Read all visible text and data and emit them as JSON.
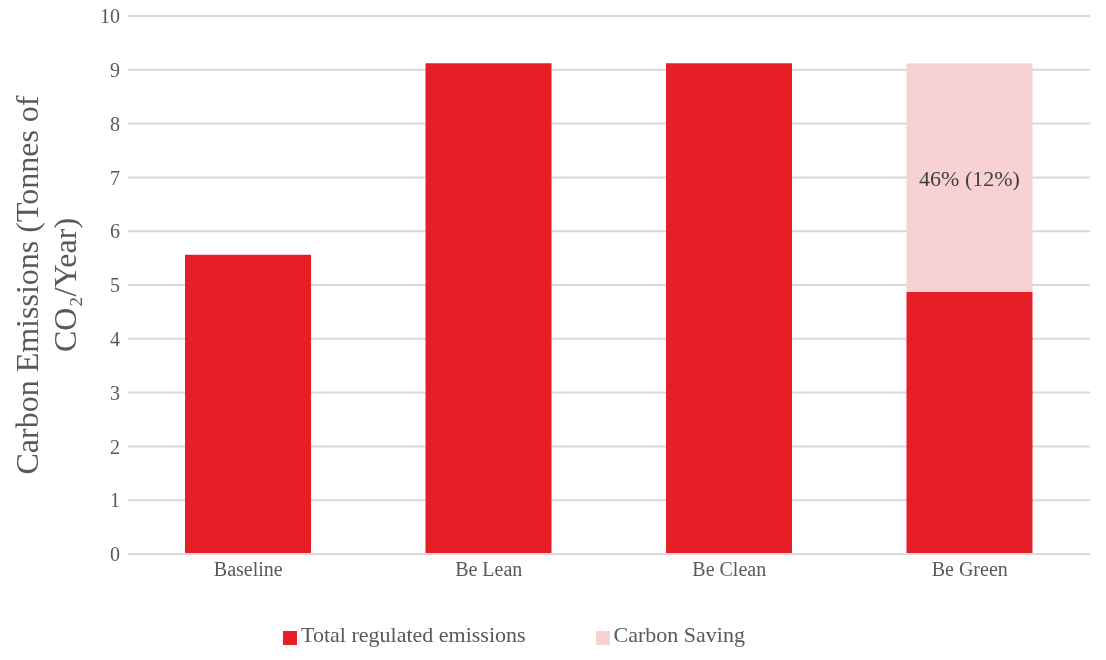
{
  "chart_data": {
    "type": "bar",
    "stacked": true,
    "categories": [
      "Baseline",
      "Be Lean",
      "Be Clean",
      "Be Green"
    ],
    "series": [
      {
        "name": "Total regulated emissions",
        "color": "#e51e28",
        "values": [
          5.56,
          9.12,
          9.12,
          4.87
        ]
      },
      {
        "name": "Carbon Saving",
        "color": "#f8d2d3",
        "values": [
          0,
          0,
          0,
          4.25
        ]
      }
    ],
    "ylabel": "Carbon Emissions (Tonnes of CO₂/Year)",
    "ylim": [
      0,
      10
    ],
    "yticks": [
      0,
      1,
      2,
      3,
      4,
      5,
      6,
      7,
      8,
      9,
      10
    ],
    "grid": "y",
    "legend": "bottom",
    "annotations": [
      "46% (12%)"
    ]
  }
}
